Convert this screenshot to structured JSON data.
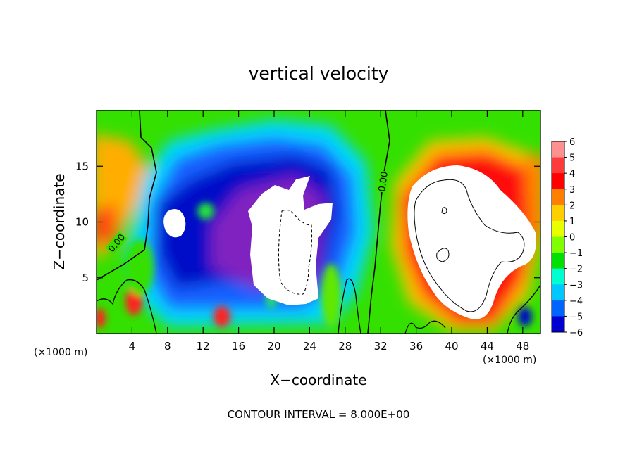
{
  "chart_data": {
    "type": "heatmap",
    "title": "vertical velocity",
    "xlabel": "X−coordinate",
    "ylabel": "Z−coordinate",
    "x_unit_label": "(×1000 m)",
    "y_unit_label": "(×1000 m)",
    "xlim": [
      0,
      50
    ],
    "ylim": [
      0,
      20
    ],
    "x_ticks": [
      4,
      8,
      12,
      16,
      20,
      24,
      28,
      32,
      36,
      40,
      44,
      48
    ],
    "y_ticks": [
      5,
      10,
      15
    ],
    "contour_interval_text": "CONTOUR INTERVAL = 8.000E+00",
    "contour_labels": [
      "0.00",
      "0.00"
    ],
    "colorbar": {
      "levels": [
        6,
        5,
        4,
        3,
        2,
        1,
        0,
        -1,
        -2,
        -3,
        -4,
        -5,
        -6
      ],
      "level_labels": [
        "6",
        "5",
        "4",
        "3",
        "2",
        "1",
        "0",
        "−1",
        "−2",
        "−3",
        "−4",
        "−5",
        "−6"
      ],
      "colors": [
        "#ff9090",
        "#ff3a3a",
        "#ff0000",
        "#ff8000",
        "#ffd000",
        "#e8ff00",
        "#80ff00",
        "#00e000",
        "#00ffd0",
        "#00c8ff",
        "#0064ff",
        "#0000d0",
        "#8000c0"
      ]
    },
    "saturation_colors": {
      "above": "#ffffff",
      "below": "#ffffff"
    },
    "features": [
      {
        "name": "updraft_core",
        "x": 38.5,
        "z": 10,
        "sign": "positive"
      },
      {
        "name": "downdraft_core",
        "x": 21.5,
        "z": 9.5,
        "sign": "negative"
      },
      {
        "name": "downdraft_cell",
        "x": 9,
        "z": 10,
        "sign": "negative"
      }
    ]
  }
}
